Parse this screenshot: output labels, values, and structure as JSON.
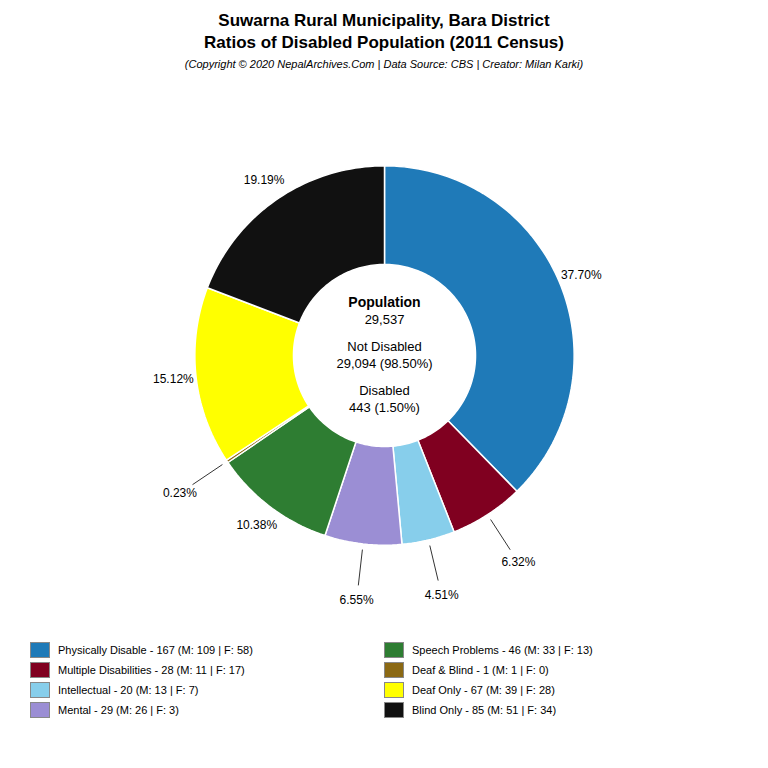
{
  "chart_data": {
    "type": "pie",
    "title": "Suwarna Rural Municipality, Bara District\nRatios of Disabled Population (2011 Census)",
    "subtitle": "(Copyright © 2020 NepalArchives.Com | Data Source: CBS | Creator: Milan Karki)",
    "categories": [
      "Physically Disable - 167 (M: 109 | F: 58)",
      "Multiple Disabilities - 28 (M: 11 | F: 17)",
      "Intellectual - 20 (M: 13 | F: 7)",
      "Mental - 29 (M: 26 | F: 3)",
      "Speech Problems - 46 (M: 33 | F: 13)",
      "Deaf & Blind - 1 (M: 1 | F: 0)",
      "Deaf Only - 67 (M: 39 | F: 28)",
      "Blind Only - 85 (M: 51 | F: 34)"
    ],
    "values": [
      37.7,
      6.32,
      4.51,
      6.55,
      10.38,
      0.23,
      15.12,
      19.19
    ],
    "value_labels": [
      "37.70%",
      "6.32%",
      "4.51%",
      "6.55%",
      "10.38%",
      "0.23%",
      "15.12%",
      "19.19%"
    ],
    "colors": [
      "#1f7ab8",
      "#800020",
      "#87ceeb",
      "#9b8ed4",
      "#2e7d32",
      "#8B6914",
      "#ffff00",
      "#111111"
    ],
    "data_labels": true,
    "annotations": [
      "Population",
      "29,537",
      "Not Disabled",
      "29,094 (98.50%)",
      "Disabled",
      "443 (1.50%)"
    ],
    "legend": "bottom",
    "tick_labels": false
  }
}
